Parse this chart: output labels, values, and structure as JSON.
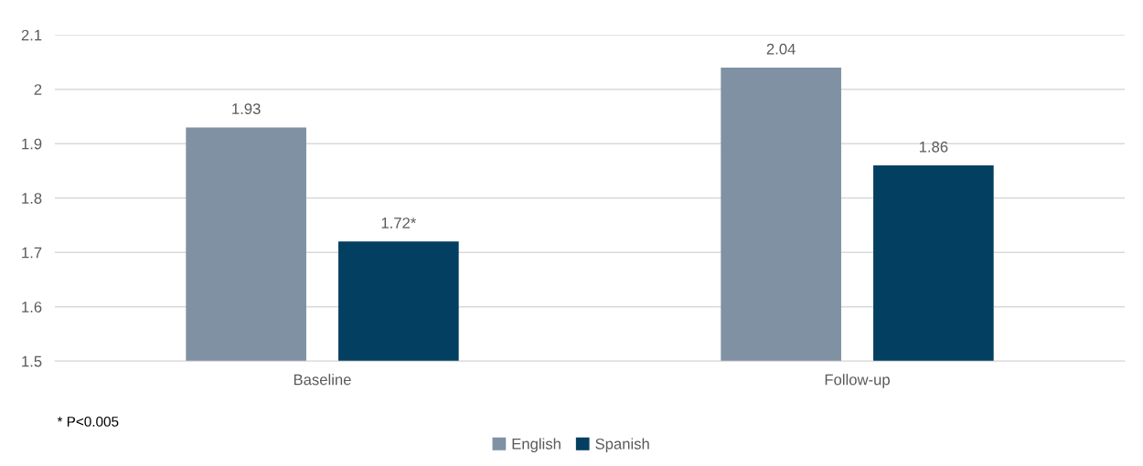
{
  "chart_data": {
    "type": "bar",
    "categories": [
      "Baseline",
      "Follow-up"
    ],
    "series": [
      {
        "name": "English",
        "color": "#7f91a3",
        "values": [
          1.93,
          2.04
        ],
        "value_labels": [
          "1.93",
          "2.04"
        ]
      },
      {
        "name": "Spanish",
        "color": "#033f60",
        "values": [
          1.72,
          1.86
        ],
        "value_labels": [
          "1.72*",
          "1.86"
        ]
      }
    ],
    "ylim": [
      1.5,
      2.1
    ],
    "yticks": [
      1.5,
      1.6,
      1.7,
      1.8,
      1.9,
      2,
      2.1
    ],
    "grid": "y",
    "legend": "bottom",
    "annotations": [
      "* P<0.005"
    ]
  }
}
